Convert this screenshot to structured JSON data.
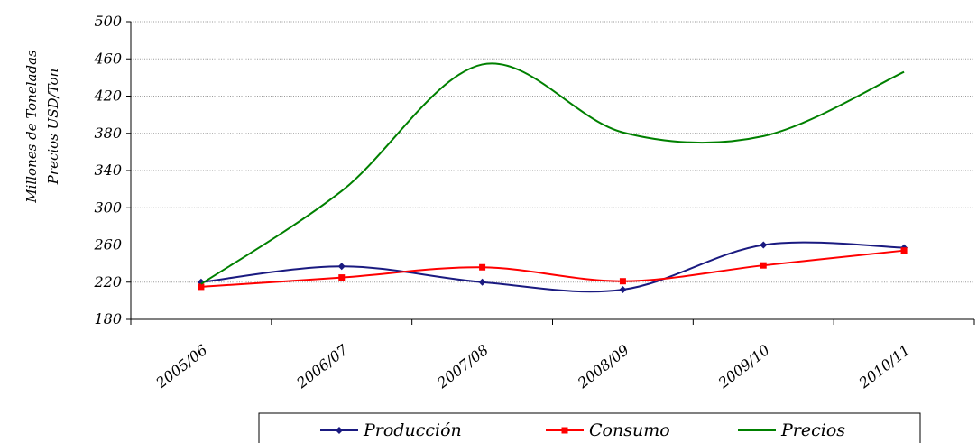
{
  "chart_data": {
    "type": "line",
    "categories": [
      "2005/06",
      "2006/07",
      "2007/08",
      "2008/09",
      "2009/10",
      "2010/11"
    ],
    "ylabel_lines": [
      "Millones de Toneladas",
      "Precios USD/Ton"
    ],
    "ylim": [
      180,
      500
    ],
    "yticks": [
      180,
      220,
      260,
      300,
      340,
      380,
      420,
      460,
      500
    ],
    "grid": true,
    "legend_position": "bottom",
    "series": [
      {
        "name": "Producción",
        "color": "#1a1a80",
        "marker": "diamond",
        "values": [
          220,
          237,
          220,
          212,
          260,
          257
        ]
      },
      {
        "name": "Consumo",
        "color": "#ff0000",
        "marker": "square",
        "values": [
          215,
          225,
          236,
          221,
          238,
          254
        ]
      },
      {
        "name": "Precios",
        "color": "#008000",
        "marker": "none",
        "values": [
          218,
          318,
          454,
          381,
          377,
          446
        ]
      }
    ]
  }
}
